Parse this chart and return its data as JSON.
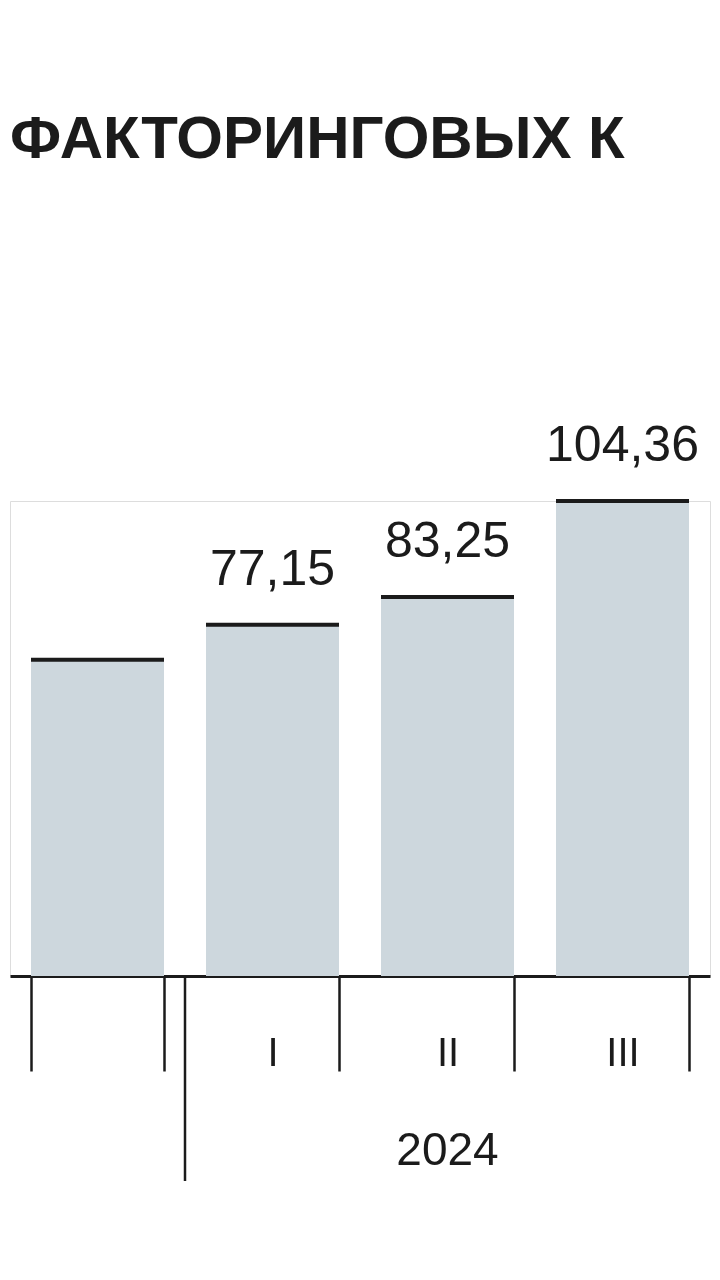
{
  "chart_data": {
    "type": "bar",
    "title": "ФАКТОРИНГОВЫХ К",
    "categories": [
      null,
      "I",
      "II",
      "III"
    ],
    "values": [
      69.5,
      77.15,
      83.25,
      104.36
    ],
    "value_labels": [
      null,
      "77,15",
      "83,25",
      "104,36"
    ],
    "color": "#cdd7dd",
    "annotations": [
      "2024"
    ],
    "tick_labels": "x"
  }
}
